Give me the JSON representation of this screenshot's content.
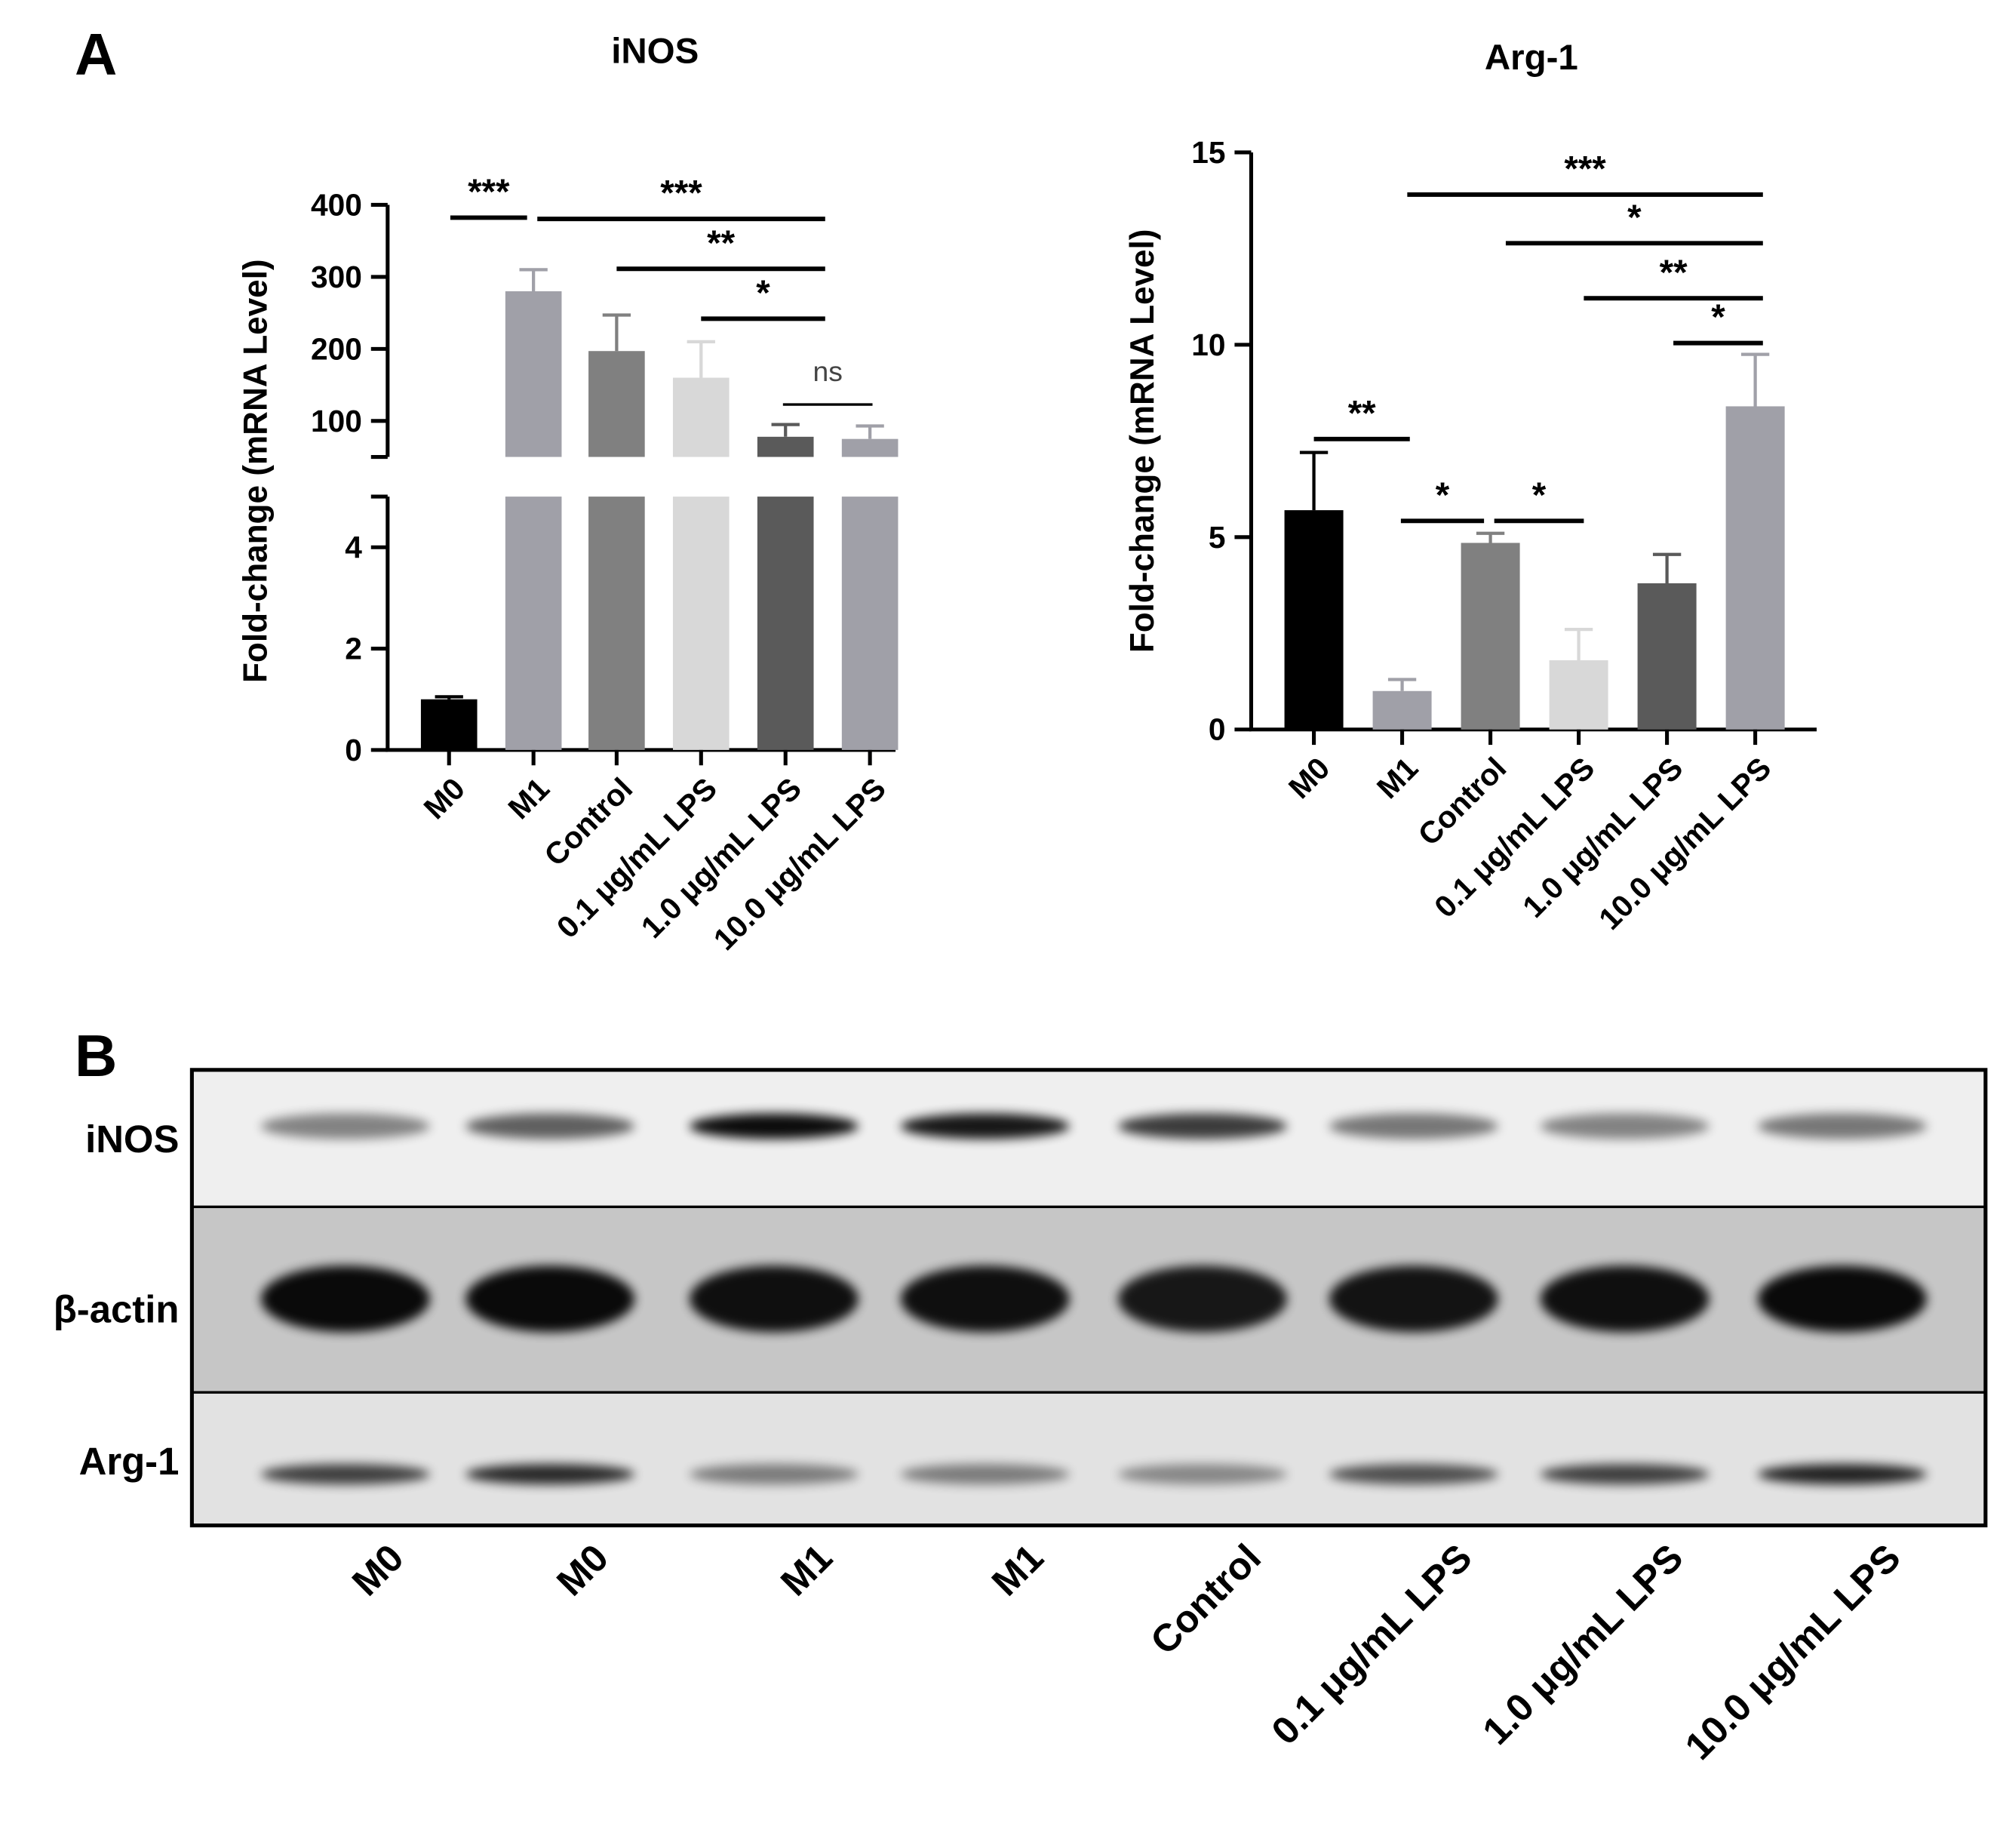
{
  "panel_a_label": "A",
  "chart_data": [
    {
      "type": "bar",
      "title": "iNOS",
      "y_label": "Fold-change (mRNA Level)",
      "categories": [
        "M0",
        "M1",
        "Control",
        "0.1 μg/mL LPS",
        "1.0 μg/mL LPS",
        "10.0 μg/mL LPS"
      ],
      "values": [
        1,
        280,
        197,
        160,
        78,
        75
      ],
      "errors": [
        0.05,
        30,
        50,
        50,
        17,
        18
      ],
      "colors": [
        "#000000",
        "#a0a0a8",
        "#808080",
        "#d8d8d8",
        "#5a5a5a",
        "#a0a0a8"
      ],
      "ylim": [
        0,
        400
      ],
      "axis_break": [
        5,
        50
      ],
      "yticks": [
        0,
        2,
        4,
        100,
        200,
        300,
        400
      ],
      "significance": [
        "***",
        "***",
        "**",
        "*",
        "ns"
      ]
    },
    {
      "type": "bar",
      "title": "Arg-1",
      "y_label": "Fold-change (mRNA Level)",
      "categories": [
        "M0",
        "M1",
        "Control",
        "0.1 μg/mL LPS",
        "1.0 μg/mL LPS",
        "10.0 μg/mL LPS"
      ],
      "values": [
        5.7,
        1.0,
        4.85,
        1.8,
        3.8,
        8.4
      ],
      "errors": [
        1.5,
        0.3,
        0.25,
        0.8,
        0.75,
        1.35
      ],
      "colors": [
        "#000000",
        "#a0a0a8",
        "#808080",
        "#d8d8d8",
        "#5a5a5a",
        "#a0a0a8"
      ],
      "ylim": [
        0,
        15
      ],
      "yticks": [
        0,
        5,
        10,
        15
      ],
      "significance": [
        "***",
        "*",
        "**",
        "*",
        "**",
        "*",
        "*"
      ]
    }
  ],
  "blot": {
    "label": "B",
    "rows": [
      "iNOS",
      "β-actin",
      "Arg-1"
    ],
    "lanes": [
      "M0",
      "M0",
      "M1",
      "M1",
      "Control",
      "0.1 μg/mL LPS",
      "1.0 μg/mL LPS",
      "10.0 μg/mL LPS"
    ]
  }
}
